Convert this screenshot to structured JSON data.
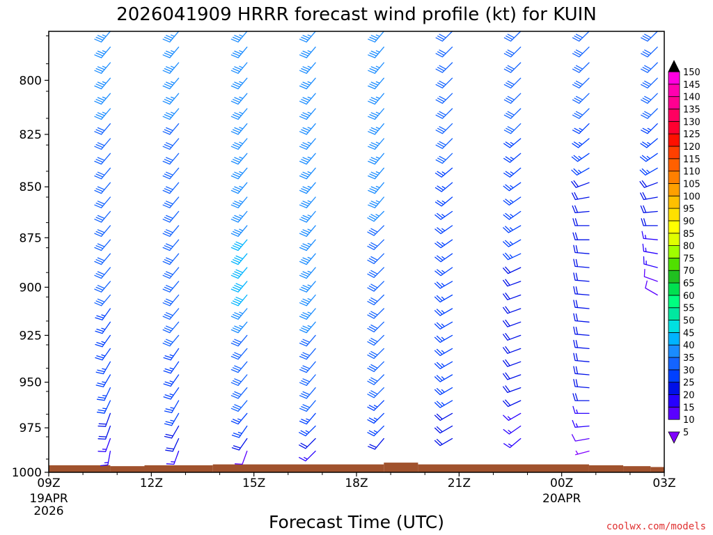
{
  "chart_data": {
    "type": "wind_barb_profile",
    "title": "2026041909 HRRR forecast wind profile (kt) for KUIN",
    "xlabel": "Forecast Time (UTC)",
    "ylabel": "",
    "credit": "coolwx.com/models",
    "yaxis": {
      "ticks": [
        800,
        825,
        850,
        875,
        900,
        925,
        950,
        975,
        1000
      ],
      "range": [
        1000,
        778
      ],
      "unit": "hPa"
    },
    "xaxis": {
      "ticks": [
        {
          "hour": 0,
          "label": "09Z",
          "sub1": "19APR",
          "sub2": "2026"
        },
        {
          "hour": 3,
          "label": "12Z",
          "sub1": "",
          "sub2": ""
        },
        {
          "hour": 6,
          "label": "15Z",
          "sub1": "",
          "sub2": ""
        },
        {
          "hour": 9,
          "label": "18Z",
          "sub1": "",
          "sub2": ""
        },
        {
          "hour": 12,
          "label": "21Z",
          "sub1": "",
          "sub2": ""
        },
        {
          "hour": 15,
          "label": "00Z",
          "sub1": "20APR",
          "sub2": ""
        },
        {
          "hour": 18,
          "label": "03Z",
          "sub1": "",
          "sub2": ""
        }
      ],
      "range": [
        0,
        18
      ]
    },
    "terrain": [
      {
        "h0": 0,
        "h1": 1.8,
        "p": 996
      },
      {
        "h0": 1.8,
        "h1": 2.8,
        "p": 996.5
      },
      {
        "h0": 2.8,
        "h1": 4.8,
        "p": 996
      },
      {
        "h0": 4.8,
        "h1": 9.8,
        "p": 995.5
      },
      {
        "h0": 9.8,
        "h1": 10.8,
        "p": 994.5
      },
      {
        "h0": 10.8,
        "h1": 15.8,
        "p": 995.5
      },
      {
        "h0": 15.8,
        "h1": 16.8,
        "p": 996
      },
      {
        "h0": 16.8,
        "h1": 17.6,
        "p": 996.5
      },
      {
        "h0": 17.6,
        "h1": 18,
        "p": 997
      }
    ],
    "colorbar": {
      "values": [
        5,
        10,
        15,
        20,
        25,
        30,
        35,
        40,
        45,
        50,
        55,
        60,
        65,
        70,
        75,
        80,
        85,
        90,
        95,
        100,
        105,
        110,
        115,
        120,
        125,
        130,
        135,
        140,
        145,
        150
      ],
      "colors": [
        "#8000ff",
        "#5a00ff",
        "#2800ff",
        "#0010e8",
        "#0040ff",
        "#1464ff",
        "#1a8cff",
        "#00b4ff",
        "#00e0e0",
        "#00e8a0",
        "#00ff80",
        "#00e050",
        "#20c020",
        "#50e000",
        "#a0ff00",
        "#e0ff00",
        "#ffff00",
        "#ffe000",
        "#ffc000",
        "#ffa000",
        "#ff8000",
        "#ff6000",
        "#ff4000",
        "#ff1000",
        "#ff0030",
        "#ff0060",
        "#ff0090",
        "#ff00b0",
        "#ff00e0",
        "#000000"
      ]
    },
    "profiles": [
      {
        "hour": 1.8,
        "speeds": [
          35,
          35,
          35,
          35,
          35,
          35,
          30,
          30,
          30,
          30,
          30,
          30,
          30,
          30,
          30,
          30,
          30,
          30,
          30,
          25,
          25,
          25,
          25,
          25,
          25,
          25,
          25,
          20,
          20,
          15,
          15
        ],
        "dirs": [
          220,
          220,
          220,
          220,
          220,
          220,
          220,
          220,
          220,
          220,
          220,
          220,
          220,
          220,
          220,
          220,
          220,
          220,
          220,
          215,
          215,
          215,
          215,
          210,
          210,
          205,
          205,
          200,
          200,
          200,
          190
        ]
      },
      {
        "hour": 3.8,
        "speeds": [
          35,
          35,
          35,
          35,
          35,
          35,
          30,
          30,
          30,
          30,
          30,
          30,
          30,
          30,
          30,
          30,
          30,
          30,
          30,
          30,
          30,
          30,
          25,
          25,
          25,
          25,
          25,
          25,
          20,
          20,
          15
        ],
        "dirs": [
          220,
          220,
          220,
          220,
          220,
          220,
          220,
          220,
          220,
          220,
          220,
          220,
          220,
          220,
          220,
          220,
          220,
          220,
          220,
          220,
          220,
          220,
          215,
          215,
          215,
          215,
          210,
          210,
          210,
          205,
          200
        ]
      },
      {
        "hour": 5.8,
        "speeds": [
          35,
          35,
          35,
          35,
          35,
          35,
          35,
          35,
          35,
          35,
          35,
          35,
          35,
          35,
          40,
          40,
          40,
          40,
          40,
          35,
          35,
          30,
          30,
          30,
          30,
          30,
          30,
          25,
          25,
          20,
          10
        ],
        "dirs": [
          220,
          220,
          220,
          220,
          220,
          220,
          220,
          220,
          220,
          220,
          220,
          220,
          220,
          220,
          220,
          220,
          220,
          220,
          220,
          220,
          220,
          220,
          220,
          220,
          220,
          220,
          220,
          220,
          215,
          215,
          200
        ]
      },
      {
        "hour": 7.8,
        "speeds": [
          35,
          35,
          35,
          35,
          35,
          35,
          35,
          35,
          35,
          35,
          35,
          35,
          35,
          35,
          35,
          35,
          35,
          35,
          35,
          35,
          35,
          30,
          30,
          30,
          30,
          30,
          30,
          25,
          25,
          20,
          15
        ],
        "dirs": [
          220,
          220,
          220,
          220,
          220,
          220,
          220,
          220,
          220,
          220,
          220,
          220,
          220,
          220,
          220,
          220,
          220,
          220,
          220,
          220,
          220,
          220,
          220,
          220,
          220,
          220,
          220,
          220,
          225,
          225,
          225
        ]
      },
      {
        "hour": 9.8,
        "speeds": [
          35,
          35,
          35,
          35,
          35,
          35,
          35,
          35,
          35,
          35,
          35,
          35,
          35,
          30,
          30,
          30,
          30,
          30,
          30,
          30,
          30,
          30,
          30,
          30,
          30,
          30,
          25,
          25,
          25,
          20
        ],
        "dirs": [
          220,
          220,
          220,
          220,
          220,
          220,
          220,
          220,
          220,
          220,
          220,
          220,
          225,
          225,
          225,
          225,
          225,
          225,
          225,
          225,
          225,
          225,
          225,
          225,
          225,
          225,
          225,
          225,
          225,
          220
        ]
      },
      {
        "hour": 11.8,
        "speeds": [
          30,
          30,
          30,
          30,
          30,
          30,
          30,
          30,
          30,
          25,
          25,
          25,
          25,
          25,
          25,
          25,
          25,
          25,
          25,
          25,
          25,
          25,
          25,
          25,
          25,
          25,
          25,
          20,
          20,
          20
        ],
        "dirs": [
          225,
          225,
          225,
          225,
          225,
          225,
          225,
          225,
          225,
          230,
          230,
          230,
          235,
          235,
          235,
          235,
          235,
          240,
          240,
          240,
          240,
          240,
          240,
          240,
          240,
          240,
          240,
          240,
          240,
          240
        ]
      },
      {
        "hour": 13.8,
        "speeds": [
          30,
          30,
          30,
          30,
          30,
          30,
          30,
          25,
          25,
          25,
          25,
          25,
          25,
          25,
          25,
          25,
          20,
          20,
          20,
          20,
          20,
          20,
          20,
          20,
          20,
          20,
          20,
          15,
          15,
          15
        ],
        "dirs": [
          225,
          225,
          225,
          225,
          225,
          225,
          225,
          230,
          230,
          230,
          235,
          235,
          235,
          240,
          240,
          245,
          245,
          250,
          250,
          250,
          250,
          250,
          250,
          250,
          250,
          250,
          245,
          240,
          235,
          230
        ]
      },
      {
        "hour": 15.8,
        "speeds": [
          30,
          30,
          30,
          30,
          30,
          30,
          25,
          25,
          25,
          25,
          20,
          20,
          20,
          20,
          20,
          20,
          20,
          20,
          20,
          20,
          20,
          20,
          20,
          20,
          20,
          20,
          20,
          15,
          15,
          10,
          5
        ],
        "dirs": [
          225,
          225,
          225,
          225,
          225,
          225,
          225,
          230,
          235,
          240,
          250,
          260,
          265,
          270,
          270,
          275,
          275,
          275,
          275,
          275,
          275,
          275,
          275,
          275,
          275,
          275,
          270,
          270,
          265,
          260,
          255
        ]
      },
      {
        "hour": 17.8,
        "speeds": [
          30,
          30,
          30,
          30,
          30,
          30,
          25,
          25,
          25,
          25,
          20,
          20,
          20,
          20,
          15,
          15,
          15,
          10,
          10
        ],
        "dirs": [
          225,
          225,
          225,
          225,
          225,
          225,
          225,
          230,
          235,
          240,
          250,
          260,
          265,
          270,
          275,
          280,
          285,
          290,
          300
        ]
      }
    ]
  }
}
